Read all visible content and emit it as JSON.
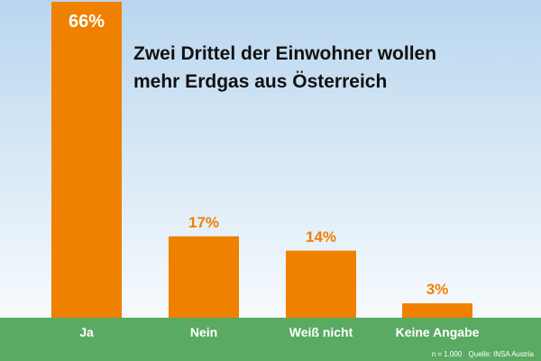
{
  "chart_data": {
    "type": "bar",
    "title_lines": [
      "Zwei Drittel der Einwohner wollen",
      "mehr Erdgas aus Österreich"
    ],
    "categories": [
      "Ja",
      "Nein",
      "Weiß nicht",
      "Keine Angabe"
    ],
    "values": [
      66,
      17,
      14,
      3
    ],
    "value_labels": [
      "66%",
      "17%",
      "14%",
      "3%"
    ],
    "ylim": [
      0,
      66
    ],
    "grid": false,
    "legend": "none",
    "colors": {
      "bar": "#f08000",
      "value_label_outside": "#f08000",
      "value_label_inside": "#ffffff",
      "category_label": "#ffffff",
      "ground": "#5aaa62"
    }
  },
  "footer": {
    "sample_size": "n = 1.000",
    "source": "Quelle: INSA Austria"
  }
}
